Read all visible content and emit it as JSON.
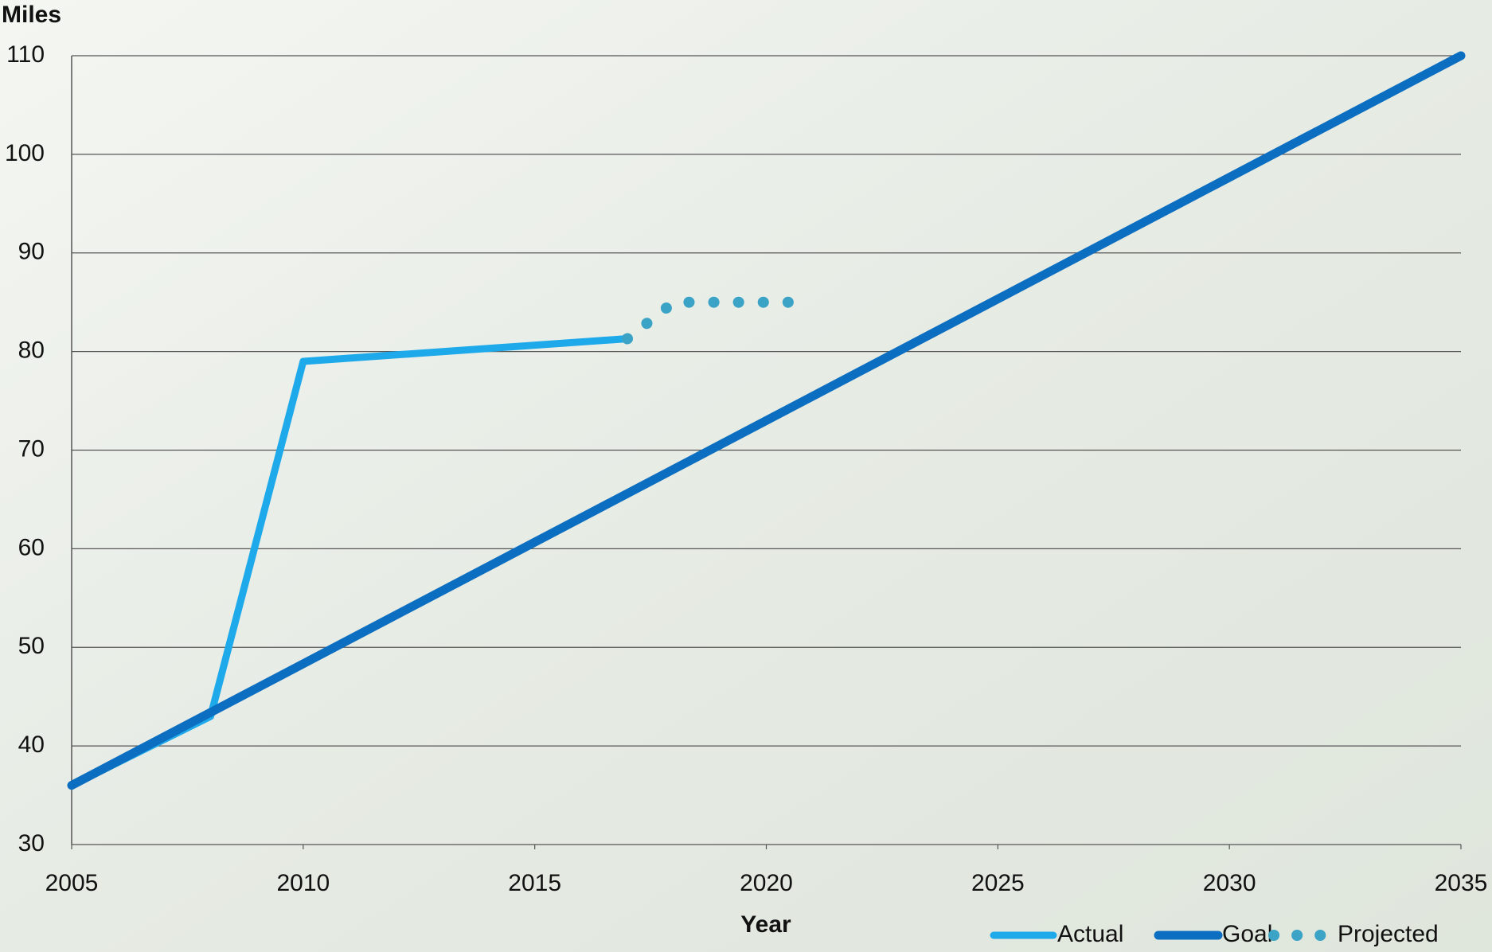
{
  "chart_data": {
    "type": "line",
    "y_label": "Miles",
    "x_label": "Year",
    "xlim": [
      2005,
      2035
    ],
    "xticks": [
      2005,
      2010,
      2015,
      2020,
      2025,
      2030,
      2035
    ],
    "ylim": [
      30,
      110
    ],
    "yticks": [
      30,
      40,
      50,
      60,
      70,
      80,
      90,
      100,
      110
    ],
    "grid": true,
    "legend": "bottom-right",
    "series": [
      {
        "name": "Actual",
        "color": "#1eaaea",
        "style": "solid",
        "x": [
          2005,
          2008,
          2010,
          2017
        ],
        "values": [
          36,
          43,
          79,
          81.3
        ]
      },
      {
        "name": "Goal",
        "color": "#0b6ec0",
        "style": "solid",
        "x": [
          2005,
          2035
        ],
        "values": [
          36,
          110
        ]
      },
      {
        "name": "Projected",
        "color": "#3ba3c6",
        "style": "dotted",
        "x": [
          2017,
          2018,
          2021
        ],
        "values": [
          81.3,
          85,
          85
        ]
      }
    ]
  }
}
